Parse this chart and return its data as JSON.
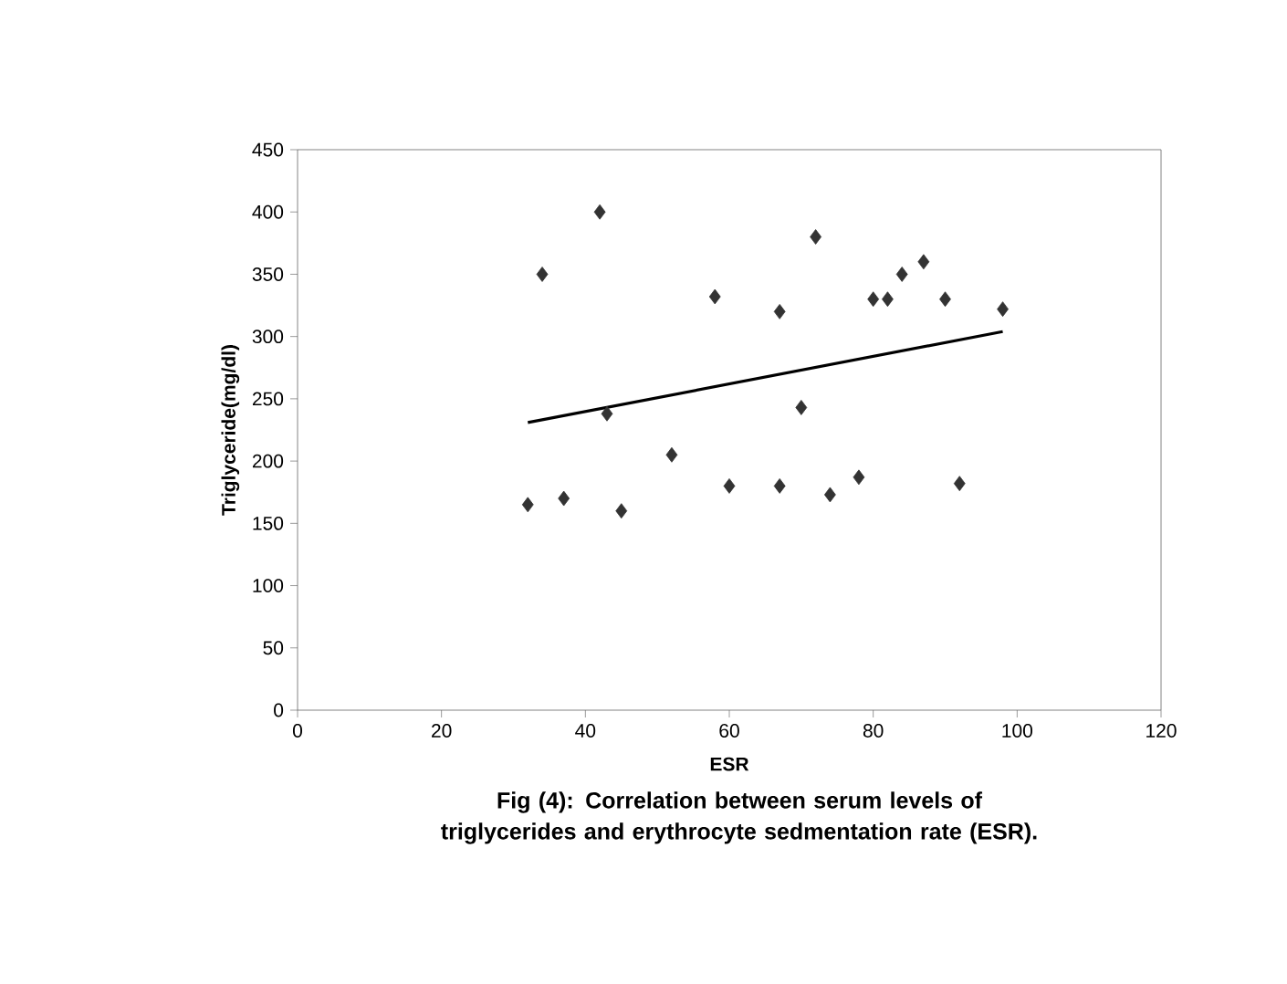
{
  "chart_data": {
    "type": "scatter",
    "title": "Fig (4): Correlation between serum levels of triglycerides and erythrocyte sedmentation rate (ESR).",
    "xlabel": "ESR",
    "ylabel": "Triglyceride(mg/dl)",
    "xlim": [
      0,
      120
    ],
    "xticks": [
      0,
      20,
      40,
      60,
      80,
      100,
      120
    ],
    "ylim": [
      0,
      450
    ],
    "yticks": [
      0,
      50,
      100,
      150,
      200,
      250,
      300,
      350,
      400,
      450
    ],
    "grid": false,
    "marker": "diamond",
    "series": [
      {
        "color": "#333333",
        "x": [
          32,
          34,
          37,
          42,
          43,
          45,
          52,
          58,
          60,
          67,
          67,
          70,
          72,
          74,
          78,
          80,
          82,
          84,
          87,
          90,
          92,
          98
        ],
        "values": [
          165,
          350,
          170,
          400,
          238,
          160,
          205,
          332,
          180,
          320,
          180,
          243,
          380,
          173,
          187,
          330,
          330,
          350,
          360,
          330,
          182,
          322
        ]
      },
      {
        "type": "line",
        "marker": "none",
        "color": "#000000",
        "x": [
          32,
          98
        ],
        "values": [
          231,
          304
        ]
      }
    ]
  }
}
